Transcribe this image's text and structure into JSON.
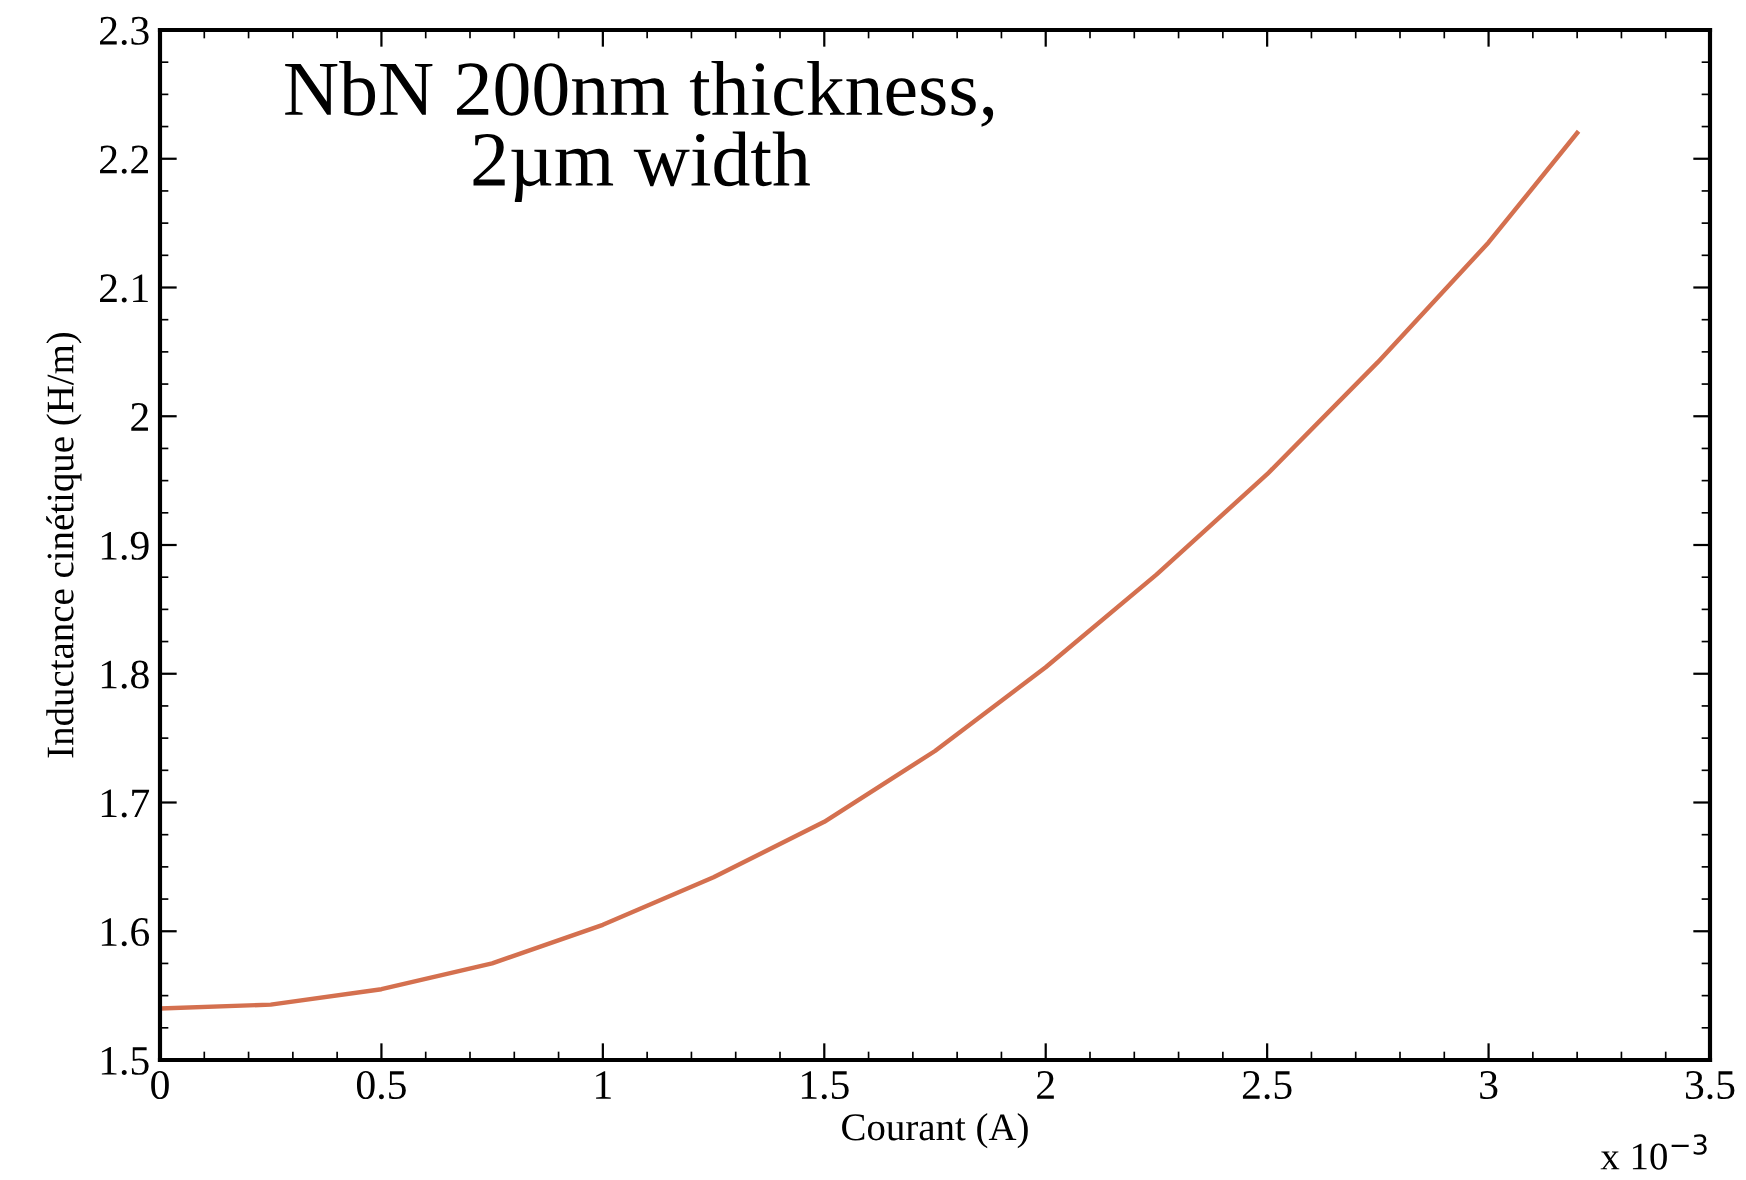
{
  "chart_data": {
    "type": "line",
    "xlabel": "Courant (A)",
    "ylabel": "Inductance cinétique (H/m)",
    "annotations": [
      "NbN 200nm thickness,\n2µm width",
      "x 10$^{−3}$"
    ],
    "x": [
      0,
      0.25,
      0.5,
      0.75,
      1,
      1.25,
      1.5,
      1.75,
      2,
      2.25,
      2.5,
      2.75,
      3,
      3.2
    ],
    "series": [
      {
        "color": "#d4704f",
        "values": [
          1.54,
          1.543,
          1.555,
          1.575,
          1.605,
          1.642,
          1.685,
          1.74,
          1.805,
          1.877,
          1.955,
          2.042,
          2.135,
          2.22
        ]
      }
    ],
    "xlim": [
      0,
      3.5
    ],
    "xticks": [
      0,
      0.5,
      1,
      1.5,
      2,
      2.5,
      3,
      3.5
    ],
    "ylim": [
      1.5,
      2.3
    ],
    "yticks": [
      1.5,
      1.6,
      1.7,
      1.8,
      1.9,
      2,
      2.1,
      2.2,
      2.3
    ],
    "grid": false,
    "marker": "none",
    "line_style": "solid"
  }
}
